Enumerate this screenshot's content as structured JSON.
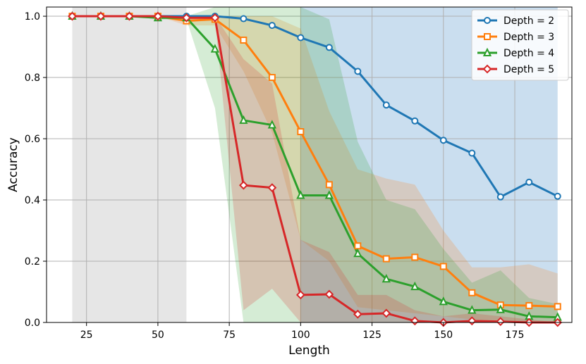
{
  "chart_data": {
    "type": "line",
    "xlabel": "Length",
    "ylabel": "Accuracy",
    "xlim": [
      11,
      195
    ],
    "ylim": [
      0.0,
      1.03
    ],
    "xticks": [
      25,
      50,
      75,
      100,
      125,
      150,
      175
    ],
    "yticks": [
      0.0,
      0.2,
      0.4,
      0.6,
      0.8,
      1.0
    ],
    "ytick_labels": [
      "0.0",
      "0.2",
      "0.4",
      "0.6",
      "0.8",
      "1.0"
    ],
    "grid": true,
    "legend_position": "top-right",
    "background_regions": [
      {
        "x": [
          20,
          60
        ],
        "color": "#d9d9d9"
      },
      {
        "x": [
          100,
          190
        ],
        "color": "#aecde6"
      }
    ],
    "x": [
      20,
      30,
      40,
      50,
      60,
      70,
      80,
      90,
      100,
      110,
      120,
      130,
      140,
      150,
      160,
      170,
      180,
      190
    ],
    "series": [
      {
        "name": "Depth = 2",
        "color": "#1f77b4",
        "marker": "circle",
        "values": [
          1.0,
          1.0,
          1.0,
          1.0,
          1.0,
          1.0,
          0.992,
          0.97,
          0.93,
          0.898,
          0.82,
          0.71,
          0.658,
          0.595,
          0.553,
          0.41,
          0.458,
          0.412
        ]
      },
      {
        "name": "Depth = 3",
        "color": "#ff7f0e",
        "marker": "square",
        "values": [
          1.0,
          1.0,
          1.0,
          1.0,
          0.985,
          0.99,
          0.922,
          0.8,
          0.623,
          0.45,
          0.25,
          0.208,
          0.213,
          0.183,
          0.097,
          0.057,
          0.055,
          0.052
        ],
        "band_lower": [
          1.0,
          1.0,
          1.0,
          1.0,
          0.97,
          0.97,
          0.82,
          0.62,
          0.27,
          0.2,
          0.05,
          0.04,
          0.03,
          0.02,
          0.01,
          0.0,
          0.0,
          0.0
        ],
        "band_upper": [
          1.0,
          1.0,
          1.0,
          1.0,
          1.0,
          1.0,
          1.0,
          1.0,
          0.96,
          0.69,
          0.5,
          0.47,
          0.45,
          0.3,
          0.18,
          0.18,
          0.19,
          0.16
        ]
      },
      {
        "name": "Depth = 4",
        "color": "#2ca02c",
        "marker": "triangle",
        "values": [
          1.0,
          1.0,
          1.0,
          0.995,
          0.995,
          0.893,
          0.66,
          0.645,
          0.415,
          0.415,
          0.225,
          0.142,
          0.117,
          0.068,
          0.04,
          0.042,
          0.02,
          0.017
        ],
        "band_lower": [
          1.0,
          1.0,
          1.0,
          0.99,
          0.99,
          0.7,
          0.0,
          0.0,
          0.0,
          0.0,
          0.0,
          0.0,
          0.0,
          0.0,
          0.0,
          0.0,
          0.0,
          0.0
        ],
        "band_upper": [
          1.0,
          1.0,
          1.0,
          1.0,
          1.0,
          1.03,
          1.03,
          1.03,
          1.03,
          0.99,
          0.59,
          0.4,
          0.37,
          0.24,
          0.13,
          0.17,
          0.08,
          0.06
        ]
      },
      {
        "name": "Depth = 5",
        "color": "#d62728",
        "marker": "diamond",
        "values": [
          1.0,
          1.0,
          1.0,
          1.0,
          0.995,
          0.995,
          0.448,
          0.44,
          0.09,
          0.092,
          0.027,
          0.03,
          0.005,
          0.0,
          0.005,
          0.003,
          0.0,
          0.0
        ],
        "band_lower": [
          1.0,
          1.0,
          1.0,
          1.0,
          0.99,
          0.99,
          0.04,
          0.11,
          0.0,
          0.0,
          0.0,
          0.0,
          0.0,
          0.0,
          0.0,
          0.0,
          0.0,
          0.0
        ],
        "band_upper": [
          1.0,
          1.0,
          1.0,
          1.0,
          1.0,
          1.0,
          0.86,
          0.78,
          0.27,
          0.23,
          0.09,
          0.09,
          0.04,
          0.02,
          0.03,
          0.02,
          0.01,
          0.0
        ]
      }
    ]
  }
}
